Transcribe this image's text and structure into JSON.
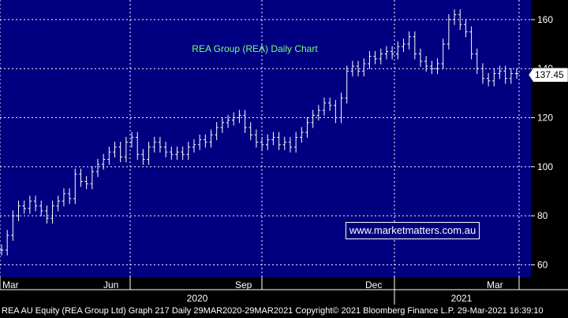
{
  "chart_data": {
    "type": "line",
    "title": "REA Group (REA) Daily Chart",
    "x_tick_labels": [
      "Mar",
      "Jun",
      "Sep",
      "Dec",
      "Mar"
    ],
    "year_labels": [
      "2020",
      "2021"
    ],
    "y_ticks": [
      60,
      80,
      100,
      120,
      140,
      160
    ],
    "ylim": [
      55,
      168
    ],
    "last_price_label": "137.45",
    "last_price": 137.45,
    "grid": true,
    "series": [
      {
        "values": [
          66,
          72,
          80,
          84,
          83,
          86,
          84,
          82,
          79,
          84,
          86,
          89,
          87,
          97,
          94,
          93,
          98,
          101,
          103,
          106,
          108,
          104,
          110,
          112,
          105,
          103,
          108,
          110,
          108,
          106,
          105,
          106,
          105,
          108,
          109,
          111,
          110,
          113,
          116,
          118,
          119,
          120,
          121,
          116,
          113,
          110,
          109,
          111,
          112,
          109,
          110,
          108,
          112,
          114,
          118,
          121,
          123,
          126,
          125,
          120,
          128,
          139,
          141,
          139,
          142,
          145,
          144,
          146,
          147,
          146,
          149,
          150,
          153,
          146,
          143,
          141,
          140,
          142,
          150,
          160,
          162,
          158,
          155,
          146,
          140,
          136,
          135,
          138,
          139,
          136,
          138,
          138
        ]
      }
    ]
  },
  "watermark": "www.marketmatters.com.au",
  "footer_text": "REA AU Equity (REA Group Ltd) Graph 217  Daily 29MAR2020-29MAR2021  Copyright© 2021 Bloomberg Finance L.P.  29-Mar-2021 16:39:10",
  "colors": {
    "background": "#000080",
    "grid": "#ffffff",
    "bars": "#ffffff",
    "title": "#7cfc7c",
    "axis_panel": "#000000"
  }
}
